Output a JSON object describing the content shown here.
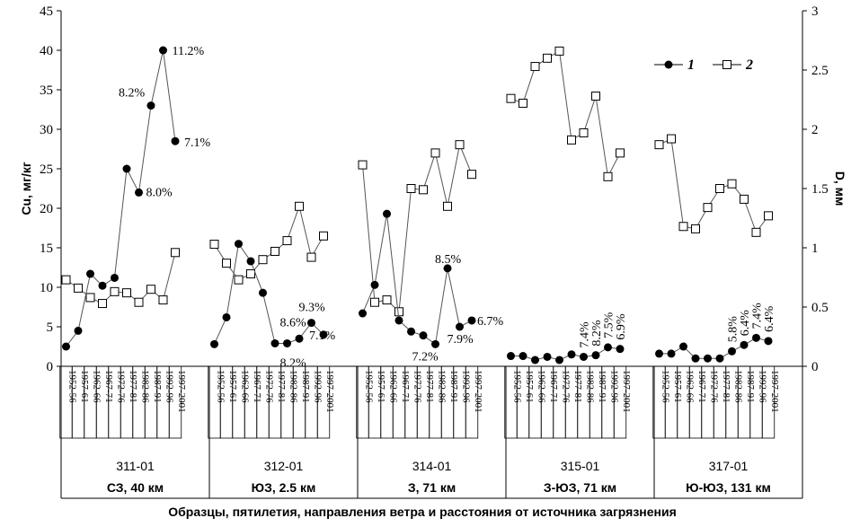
{
  "chart_data": {
    "type": "line",
    "xlabel": "Образцы, пятилетия, направления ветра и расстояния от источника загрязнения",
    "ylabel_left": "Cu, мг/кг",
    "ylabel_right": "D, мм",
    "ylim_left": [
      0,
      45
    ],
    "ylim_right": [
      0,
      3
    ],
    "yticks_left": [
      "0",
      "5",
      "10",
      "15",
      "20",
      "25",
      "30",
      "35",
      "40",
      "45"
    ],
    "yticks_right": [
      "0",
      "0.5",
      "1",
      "1.5",
      "2",
      "2.5",
      "3"
    ],
    "legend": [
      "1",
      "2"
    ],
    "legend_position": "top-right",
    "categories": [
      "1952-56",
      "1957-61",
      "1962-66",
      "1967-71",
      "1972-76",
      "1977-81",
      "1982-86",
      "1987-91",
      "1992-96",
      "1997-2001"
    ],
    "groups": [
      {
        "sample": "311-01",
        "direction": "СЗ, 40 км",
        "cu": [
          2.5,
          4.5,
          11.7,
          10.2,
          11.2,
          25,
          22,
          33,
          40,
          28.5
        ],
        "d": [
          0.73,
          0.66,
          0.58,
          0.53,
          0.63,
          0.62,
          0.54,
          0.65,
          0.56,
          0.96
        ],
        "annotations": [
          {
            "index": 6,
            "text": "8.0%"
          },
          {
            "index": 7,
            "text": "8.2%"
          },
          {
            "index": 8,
            "text": "11.2%"
          },
          {
            "index": 9,
            "text": "7.1%"
          }
        ]
      },
      {
        "sample": "312-01",
        "direction": "ЮЗ, 2.5 км",
        "cu": [
          2.8,
          6.2,
          15.5,
          13.3,
          9.3,
          2.9,
          2.9,
          3.5,
          5.5,
          4
        ],
        "d": [
          1.03,
          0.87,
          0.73,
          0.78,
          0.9,
          0.97,
          1.06,
          1.35,
          0.92,
          1.1
        ],
        "annotations": [
          {
            "index": 6,
            "text": "8.6%"
          },
          {
            "index": 6,
            "text": "8.2%"
          },
          {
            "index": 8,
            "text": "9.3%"
          },
          {
            "index": 9,
            "text": "7.1%"
          }
        ]
      },
      {
        "sample": "314-01",
        "direction": "З, 71 км",
        "cu": [
          6.7,
          10.3,
          19.3,
          5.8,
          4.4,
          3.9,
          2.8,
          12.4,
          5,
          5.8
        ],
        "d": [
          1.7,
          0.54,
          0.56,
          0.46,
          1.5,
          1.49,
          1.8,
          1.35,
          1.87,
          1.62
        ],
        "annotations": [
          {
            "index": 6,
            "text": "7.2%"
          },
          {
            "index": 7,
            "text": "8.5%"
          },
          {
            "index": 8,
            "text": "7.9%"
          },
          {
            "index": 9,
            "text": "6.7%"
          }
        ]
      },
      {
        "sample": "315-01",
        "direction": "З-ЮЗ, 71 км",
        "cu": [
          1.3,
          1.3,
          0.8,
          1.2,
          0.8,
          1.5,
          1.2,
          1.4,
          2.4,
          2.2
        ],
        "d": [
          2.26,
          2.22,
          2.53,
          2.6,
          2.66,
          1.91,
          1.97,
          2.28,
          1.6,
          1.8
        ],
        "annotations": [
          {
            "index": 6,
            "text": "7.4%"
          },
          {
            "index": 7,
            "text": "8.2%"
          },
          {
            "index": 8,
            "text": "7.5%"
          },
          {
            "index": 9,
            "text": "6.9%"
          }
        ]
      },
      {
        "sample": "317-01",
        "direction": "Ю-ЮЗ, 131 км",
        "cu": [
          1.6,
          1.6,
          2.5,
          1,
          1,
          1,
          1.9,
          2.7,
          3.6,
          3.2
        ],
        "d": [
          1.87,
          1.92,
          1.18,
          1.16,
          1.34,
          1.5,
          1.54,
          1.41,
          1.13,
          1.27
        ],
        "annotations": [
          {
            "index": 6,
            "text": "5.8%"
          },
          {
            "index": 7,
            "text": "6.4%"
          },
          {
            "index": 8,
            "text": "7.4%"
          },
          {
            "index": 9,
            "text": "6.4%"
          }
        ]
      }
    ]
  }
}
